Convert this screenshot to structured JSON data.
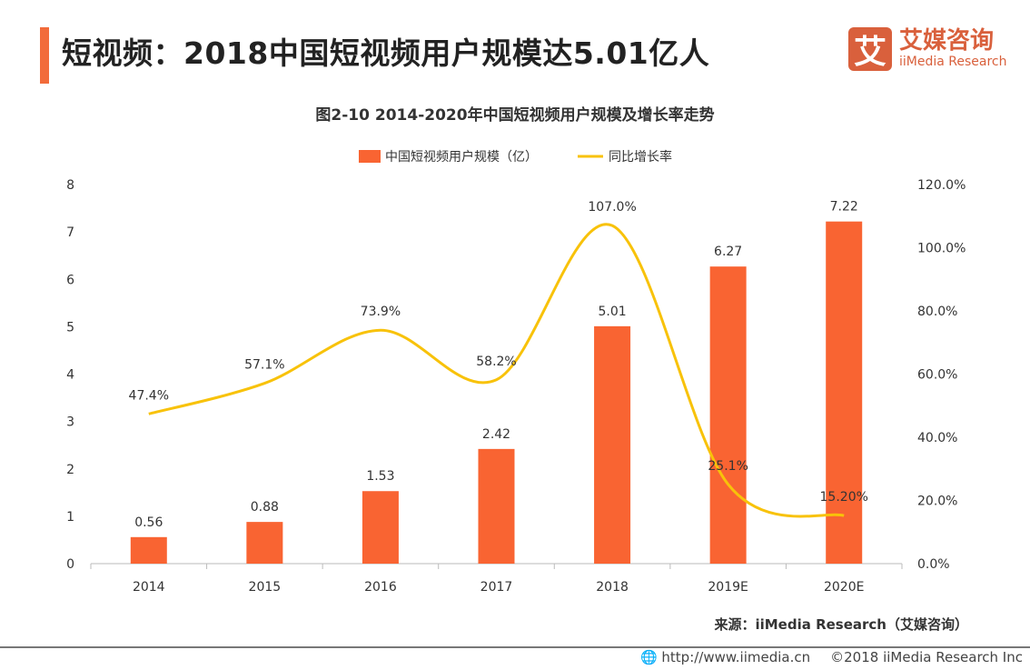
{
  "header": {
    "title": "短视频：2018中国短视频用户规模达5.01亿人",
    "logo_cn": "艾媒咨询",
    "logo_en": "iiMedia Research",
    "logo_mark": "艾"
  },
  "chart_data": {
    "type": "bar+line",
    "title": "图2-10 2014-2020年中国短视频用户规模及增长率走势",
    "categories": [
      "2014",
      "2015",
      "2016",
      "2017",
      "2018",
      "2019E",
      "2020E"
    ],
    "series": [
      {
        "name": "中国短视频用户规模（亿）",
        "type": "bar",
        "axis": "left",
        "values": [
          0.56,
          0.88,
          1.53,
          2.42,
          5.01,
          6.27,
          7.22
        ],
        "labels": [
          "0.56",
          "0.88",
          "1.53",
          "2.42",
          "5.01",
          "6.27",
          "7.22"
        ],
        "color": "#f96432"
      },
      {
        "name": "同比增长率",
        "type": "line",
        "axis": "right",
        "values": [
          47.4,
          57.1,
          73.9,
          58.2,
          107.0,
          25.1,
          15.2
        ],
        "labels": [
          "47.4%",
          "57.1%",
          "73.9%",
          "58.2%",
          "107.0%",
          "25.1%",
          "15.20%"
        ],
        "color": "#f8c20a"
      }
    ],
    "y_left": {
      "range": [
        0,
        8
      ],
      "ticks": [
        "0",
        "1",
        "2",
        "3",
        "4",
        "5",
        "6",
        "7",
        "8"
      ]
    },
    "y_right": {
      "range": [
        0,
        120
      ],
      "ticks": [
        "0.0%",
        "20.0%",
        "40.0%",
        "60.0%",
        "80.0%",
        "100.0%",
        "120.0%"
      ]
    },
    "legend": "top-center",
    "grid": false
  },
  "footer": {
    "source": "来源：iiMedia Research（艾媒咨询）",
    "url": "http://www.iimedia.cn",
    "copyright": "©2018  iiMedia Research Inc"
  }
}
